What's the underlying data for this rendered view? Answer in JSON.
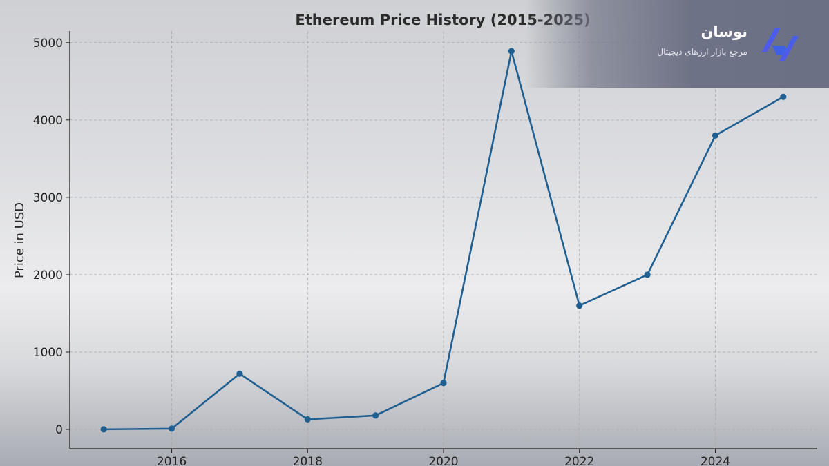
{
  "brand": {
    "name": "نوسان",
    "tagline": "مرجع بازار ارزهای دیجیتال",
    "logo_icon": "nosan-logo-icon",
    "logo_colors": [
      "#2f6df6",
      "#6a4be0"
    ]
  },
  "chart_data": {
    "type": "line",
    "title": "Ethereum Price History (2015-2025)",
    "xlabel": "",
    "ylabel": "Price in USD",
    "x": [
      2015,
      2016,
      2017,
      2018,
      2019,
      2020,
      2021,
      2022,
      2023,
      2024,
      2025
    ],
    "series": [
      {
        "values": [
          1,
          10,
          720,
          130,
          180,
          600,
          4890,
          1600,
          2000,
          3800,
          4300
        ]
      }
    ],
    "xticks": [
      2016,
      2018,
      2020,
      2022,
      2024
    ],
    "yticks": [
      0,
      1000,
      2000,
      3000,
      4000,
      5000
    ],
    "xlim": [
      2014.5,
      2025.5
    ],
    "ylim": [
      -250,
      5150
    ],
    "grid": true,
    "line_color": "#1f5f91",
    "marker": "circle"
  }
}
